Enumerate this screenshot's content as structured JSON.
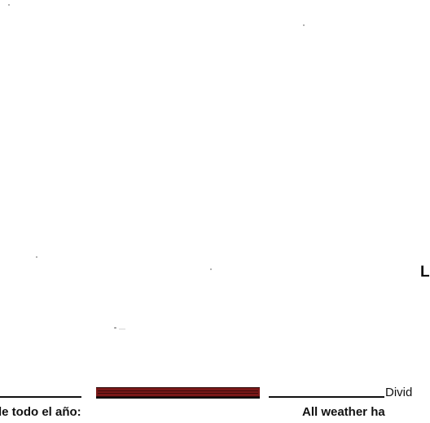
{
  "page": {
    "heading_letter": "L",
    "divider_label": "Divid",
    "caption_spanish": "le todo el año:",
    "caption_english": "All weather ha",
    "accent_color": "#7a1818"
  }
}
